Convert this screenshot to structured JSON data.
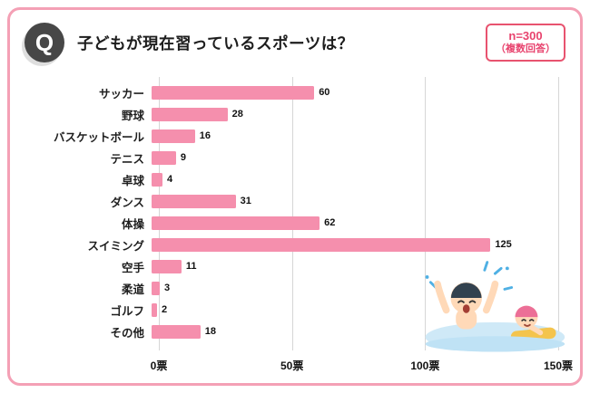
{
  "header": {
    "q_label": "Q",
    "title": "子どもが現在習っているスポーツは？",
    "note_line1": "n=300",
    "note_line2": "（複数回答）"
  },
  "chart_data": {
    "type": "bar",
    "orientation": "horizontal",
    "title": "子どもが現在習っているスポーツは？",
    "categories": [
      "サッカー",
      "野球",
      "バスケットボール",
      "テニス",
      "卓球",
      "ダンス",
      "体操",
      "スイミング",
      "空手",
      "柔道",
      "ゴルフ",
      "その他"
    ],
    "values": [
      60,
      28,
      16,
      9,
      4,
      31,
      62,
      125,
      11,
      3,
      2,
      18
    ],
    "xlabel": "",
    "ylabel": "",
    "xlim": [
      0,
      150
    ],
    "x_ticks": [
      {
        "value": 0,
        "label": "0票"
      },
      {
        "value": 50,
        "label": "50票"
      },
      {
        "value": 100,
        "label": "100票"
      },
      {
        "value": 150,
        "label": "150票"
      }
    ],
    "grid": true,
    "legend": "none",
    "bar_color": "#f58fad",
    "sample_size": "n=300",
    "answer_type": "複数回答"
  },
  "colors": {
    "frame_border": "#f4a0b5",
    "bar": "#f58fad",
    "accent_pink": "#e8436e",
    "q_badge_bg": "#474747",
    "gridline": "#d6d6d6",
    "water_blue": "#cfe9f7"
  },
  "illustration": {
    "name": "swimming-kids"
  }
}
